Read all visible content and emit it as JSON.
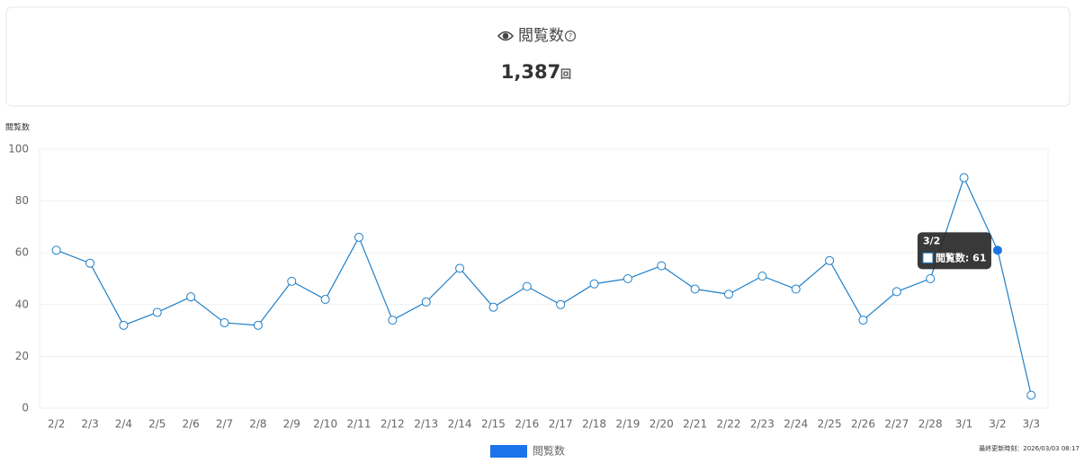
{
  "header": {
    "title": "閲覧数",
    "value": "1,387",
    "unit": "回"
  },
  "chart_data": {
    "type": "line",
    "y_label": "閲覧数",
    "categories": [
      "2/2",
      "2/3",
      "2/4",
      "2/5",
      "2/6",
      "2/7",
      "2/8",
      "2/9",
      "2/10",
      "2/11",
      "2/12",
      "2/13",
      "2/14",
      "2/15",
      "2/16",
      "2/17",
      "2/18",
      "2/19",
      "2/20",
      "2/21",
      "2/22",
      "2/23",
      "2/24",
      "2/25",
      "2/26",
      "2/27",
      "2/28",
      "3/1",
      "3/2",
      "3/3"
    ],
    "series": [
      {
        "name": "閲覧数",
        "color": "#1f7fc8",
        "values": [
          61,
          56,
          32,
          37,
          43,
          33,
          32,
          49,
          42,
          66,
          34,
          41,
          54,
          39,
          47,
          40,
          48,
          50,
          55,
          46,
          44,
          51,
          46,
          57,
          34,
          45,
          50,
          89,
          61,
          5
        ]
      }
    ],
    "ylim": [
      0,
      100
    ],
    "yticks": [
      0,
      20,
      40,
      60,
      80,
      100
    ],
    "grid": true,
    "legend_color": "#1a73e8",
    "tooltip": {
      "title": "3/2",
      "text": "閲覧数: 61"
    }
  },
  "footer": {
    "updated": "最終更新時刻：2026/03/03 08:17"
  }
}
